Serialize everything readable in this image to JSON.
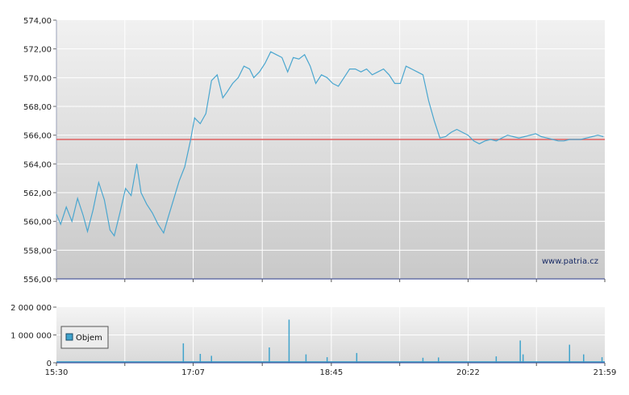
{
  "watermark": "www.patria.cz",
  "colors": {
    "price_line": "#4aa6cf",
    "reference_line": "#e06060",
    "volume_bar": "#3fa3cc",
    "grid": "#ffffff",
    "axis": "#2b3a8c"
  },
  "chart_data": [
    {
      "type": "line",
      "name": "price",
      "title": "",
      "xlabel": "",
      "ylabel": "",
      "ylim": [
        556,
        574
      ],
      "y_ticks": [
        "556,00",
        "558,00",
        "560,00",
        "562,00",
        "564,00",
        "566,00",
        "568,00",
        "570,00",
        "572,00",
        "574,00"
      ],
      "x_ticks": [
        "15:30",
        "17:07",
        "18:45",
        "20:22",
        "21:59"
      ],
      "reference_line": 565.7,
      "grid": true,
      "series": [
        {
          "x": [
            "15:30",
            "15:33",
            "15:37",
            "15:41",
            "15:45",
            "15:49",
            "15:52",
            "15:56",
            "16:00",
            "16:04",
            "16:08",
            "16:11",
            "16:15",
            "16:19",
            "16:23",
            "16:27",
            "16:30",
            "16:34",
            "16:38",
            "16:42",
            "16:46",
            "16:49",
            "16:53",
            "16:57",
            "17:01",
            "17:05",
            "17:08",
            "17:12",
            "17:16",
            "17:20",
            "17:24",
            "17:28",
            "17:31",
            "17:35",
            "17:39",
            "17:43",
            "17:47",
            "17:50",
            "17:54",
            "17:58",
            "18:02",
            "18:06",
            "18:10",
            "18:14",
            "18:18",
            "18:22",
            "18:26",
            "18:30",
            "18:34",
            "18:38",
            "18:42",
            "18:46",
            "18:50",
            "18:54",
            "18:58",
            "19:02",
            "19:06",
            "19:10",
            "19:14",
            "19:18",
            "19:22",
            "19:26",
            "19:30",
            "19:34",
            "19:38",
            "19:42",
            "19:46",
            "19:50",
            "19:54",
            "19:58",
            "20:02",
            "20:06",
            "20:10",
            "20:14",
            "20:18",
            "20:22",
            "20:26",
            "20:30",
            "20:34",
            "20:38",
            "20:42",
            "20:46",
            "20:50",
            "20:54",
            "20:58",
            "21:02",
            "21:06",
            "21:10",
            "21:14",
            "21:18",
            "21:22",
            "21:26",
            "21:30",
            "21:34",
            "21:38",
            "21:42",
            "21:46",
            "21:50",
            "21:54",
            "21:58"
          ],
          "values": [
            560.5,
            559.8,
            561.0,
            560.0,
            561.6,
            560.4,
            559.3,
            560.8,
            562.7,
            561.5,
            559.4,
            559.0,
            560.6,
            562.3,
            561.8,
            564.0,
            562.0,
            561.2,
            560.6,
            559.8,
            559.2,
            560.2,
            561.5,
            562.8,
            563.8,
            565.6,
            567.2,
            566.8,
            567.5,
            569.8,
            570.2,
            568.6,
            569.0,
            569.6,
            570.0,
            570.8,
            570.6,
            570.0,
            570.4,
            571.0,
            571.8,
            571.6,
            571.4,
            570.4,
            571.4,
            571.3,
            571.6,
            570.8,
            569.6,
            570.2,
            570.0,
            569.6,
            569.4,
            570.0,
            570.6,
            570.6,
            570.4,
            570.6,
            570.2,
            570.4,
            570.6,
            570.2,
            569.6,
            569.6,
            570.8,
            570.6,
            570.4,
            570.2,
            568.4,
            567.0,
            565.8,
            565.9,
            566.2,
            566.4,
            566.2,
            566.0,
            565.6,
            565.4,
            565.6,
            565.7,
            565.6,
            565.8,
            566.0,
            565.9,
            565.8,
            565.9,
            566.0,
            566.1,
            565.9,
            565.8,
            565.7,
            565.6,
            565.6,
            565.7,
            565.7,
            565.7,
            565.8,
            565.9,
            566.0,
            565.9
          ]
        }
      ]
    },
    {
      "type": "bar",
      "name": "volume",
      "legend": "Objem",
      "ylim": [
        0,
        2000000
      ],
      "y_ticks": [
        "0",
        "1 000 000",
        "2 000 000"
      ],
      "x_ticks": [
        "15:30",
        "17:07",
        "18:45",
        "20:22",
        "21:59"
      ],
      "grid": true,
      "spikes": [
        {
          "x": "17:00",
          "value": 700000
        },
        {
          "x": "17:12",
          "value": 320000
        },
        {
          "x": "17:20",
          "value": 250000
        },
        {
          "x": "18:01",
          "value": 550000
        },
        {
          "x": "18:15",
          "value": 1550000
        },
        {
          "x": "18:27",
          "value": 300000
        },
        {
          "x": "18:42",
          "value": 200000
        },
        {
          "x": "19:03",
          "value": 350000
        },
        {
          "x": "19:50",
          "value": 180000
        },
        {
          "x": "20:01",
          "value": 190000
        },
        {
          "x": "20:42",
          "value": 230000
        },
        {
          "x": "20:59",
          "value": 800000
        },
        {
          "x": "21:01",
          "value": 300000
        },
        {
          "x": "21:34",
          "value": 650000
        },
        {
          "x": "21:44",
          "value": 300000
        },
        {
          "x": "21:57",
          "value": 200000
        }
      ]
    }
  ]
}
